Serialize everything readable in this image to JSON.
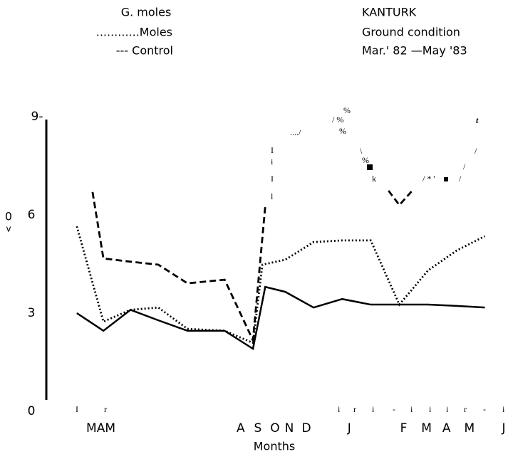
{
  "chart_data": {
    "type": "line",
    "legend_title": "G. moles",
    "site": "KANTURK",
    "subtitle": "Ground condition",
    "period": "Mar.' 82 —May '83",
    "xlabel": "Months",
    "ylabel": [
      "0",
      "v"
    ],
    "xlim": [
      0,
      15
    ],
    "ylim": [
      0,
      9
    ],
    "xticks": [
      {
        "value": 0.4,
        "label": "MAM"
      },
      {
        "value": 5.8,
        "label": "A"
      },
      {
        "value": 6.4,
        "label": "S"
      },
      {
        "value": 7.0,
        "label": "O"
      },
      {
        "value": 7.5,
        "label": "N"
      },
      {
        "value": 8.1,
        "label": "D"
      },
      {
        "value": 9.6,
        "label": "J"
      },
      {
        "value": 11.5,
        "label": "F"
      },
      {
        "value": 12.3,
        "label": "M"
      },
      {
        "value": 13.0,
        "label": "A"
      },
      {
        "value": 13.8,
        "label": "M"
      },
      {
        "value": 15.0,
        "label": "J"
      }
    ],
    "yticks": [
      {
        "value": 9,
        "label": "9-"
      },
      6,
      3,
      0
    ],
    "grid": false,
    "series": [
      {
        "name": "G. moles",
        "color": "#000000",
        "style": "dashed",
        "x": [
          0.62,
          1.0,
          1.95,
          2.92,
          3.94,
          5.24,
          6.23,
          6.66,
          null,
          10.97,
          11.35,
          11.8
        ],
        "values": [
          6.7,
          4.67,
          4.57,
          4.48,
          3.91,
          4.02,
          2.17,
          6.26,
          null,
          6.74,
          6.3,
          6.74
        ]
      },
      {
        "name": "............Moles",
        "color": "#000000",
        "style": "dotted",
        "x": [
          0.07,
          1.0,
          1.95,
          2.92,
          3.94,
          5.24,
          6.23,
          6.56,
          7.36,
          8.35,
          9.35,
          10.35,
          11.35,
          12.35,
          13.35,
          14.34
        ],
        "values": [
          5.65,
          2.74,
          3.1,
          3.17,
          2.52,
          2.46,
          2.09,
          4.48,
          4.63,
          5.17,
          5.22,
          5.22,
          3.26,
          4.3,
          4.91,
          5.35
        ]
      },
      {
        "name": "--- Control",
        "color": "#000000",
        "style": "solid",
        "x": [
          0.07,
          1.0,
          1.95,
          2.92,
          3.94,
          5.24,
          6.23,
          6.66,
          7.36,
          8.35,
          9.35,
          10.35,
          11.35,
          12.35,
          13.35,
          14.34
        ],
        "values": [
          3.0,
          2.46,
          3.1,
          2.78,
          2.46,
          2.46,
          1.91,
          3.8,
          3.65,
          3.17,
          3.43,
          3.26,
          3.26,
          3.26,
          3.22,
          3.17
        ]
      }
    ]
  },
  "annotations": [
    "%",
    "/ %",
    "%",
    "..../",
    "I",
    "i",
    "I",
    "l",
    "\\",
    "%",
    "k",
    "/ * '",
    "/",
    "/",
    "/",
    "t",
    "I",
    "r",
    "i",
    "r",
    "i",
    "-",
    "i",
    "i",
    "i",
    "r",
    "-",
    "i",
    "1"
  ]
}
